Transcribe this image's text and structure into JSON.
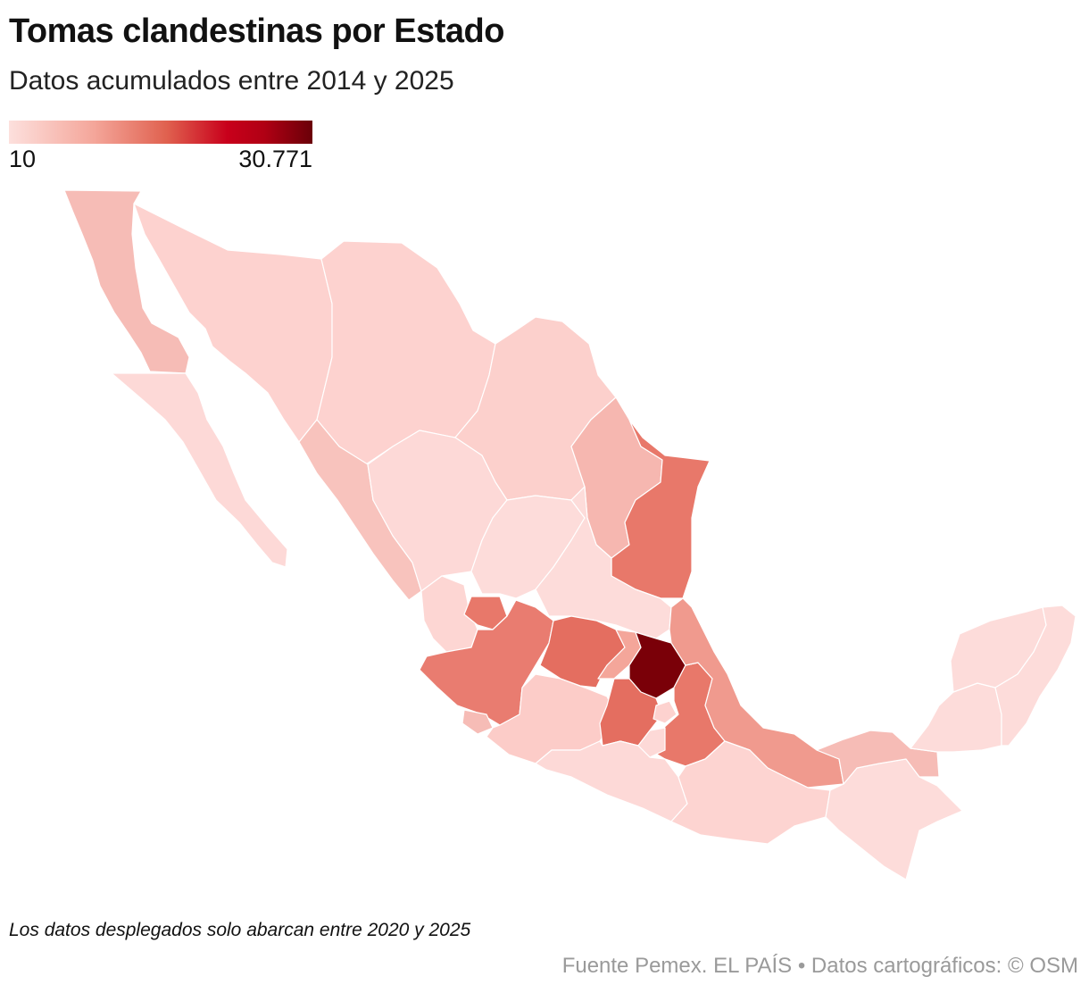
{
  "title": "Tomas clandestinas por Estado",
  "subtitle": "Datos acumulados entre 2014 y 2025",
  "legend": {
    "min_label": "10",
    "max_label": "30.771",
    "colors": [
      "#fde0dd",
      "#f4a69a",
      "#e0614f",
      "#c8001b",
      "#6a0008"
    ]
  },
  "map": {
    "region": "México",
    "state_fill_colors": {
      "baja-california": "#f6bcb6",
      "baja-california-sur": "#fdd9d7",
      "sonora": "#fdd2cf",
      "chihuahua": "#fdd2cf",
      "coahuila": "#fcd0cc",
      "nuevo-leon": "#f6b7b0",
      "tamaulipas": "#e8786a",
      "sinaloa": "#f8c3bd",
      "durango": "#fdd9d7",
      "zacatecas": "#fddcda",
      "san-luis-potosi": "#fddcda",
      "nayarit": "#fdd6d3",
      "aguascalientes": "#e8786a",
      "jalisco": "#e97c70",
      "colima": "#f6bcb6",
      "michoacan": "#fcccc8",
      "guanajuato": "#e46e60",
      "queretaro": "#f4a69a",
      "hidalgo": "#7a0008",
      "estado-de-mexico": "#e46e60",
      "cdmx": "#fdd2cf",
      "tlaxcala": "#f4a69a",
      "puebla": "#e8786a",
      "morelos": "#fdd9d7",
      "veracruz": "#f09a8e",
      "guerrero": "#fdd9d7",
      "oaxaca": "#fdd4d1",
      "chiapas": "#fddcda",
      "tabasco": "#f6bcb6",
      "campeche": "#fddcda",
      "yucatan": "#fddcda",
      "quintana-roo": "#fddcda"
    }
  },
  "note": "Los datos desplegados solo abarcan entre 2020 y 2025",
  "source": "Fuente Pemex. EL PAÍS  • Datos cartográficos: © OSM"
}
